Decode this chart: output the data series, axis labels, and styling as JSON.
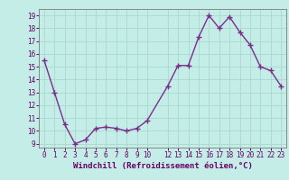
{
  "x": [
    0,
    1,
    2,
    3,
    4,
    5,
    6,
    7,
    8,
    9,
    10,
    12,
    13,
    14,
    15,
    16,
    17,
    18,
    19,
    20,
    21,
    22,
    23
  ],
  "y": [
    15.5,
    13.0,
    10.5,
    9.0,
    9.3,
    10.2,
    10.3,
    10.2,
    10.0,
    10.2,
    10.8,
    13.5,
    15.1,
    15.1,
    17.3,
    19.0,
    18.0,
    18.9,
    17.7,
    16.7,
    15.0,
    14.7,
    13.5
  ],
  "line_color": "#7B2D8B",
  "marker": "+",
  "marker_size": 4,
  "marker_linewidth": 1.0,
  "background_color": "#C5EDE8",
  "grid_color": "#A8D8CE",
  "xlabel": "Windchill (Refroidissement éolien,°C)",
  "xlabel_fontsize": 6.5,
  "ylabel_ticks": [
    9,
    10,
    11,
    12,
    13,
    14,
    15,
    16,
    17,
    18,
    19
  ],
  "xlim": [
    -0.5,
    23.5
  ],
  "ylim": [
    8.7,
    19.5
  ],
  "xticks": [
    0,
    1,
    2,
    3,
    4,
    5,
    6,
    7,
    8,
    9,
    10,
    12,
    13,
    14,
    15,
    16,
    17,
    18,
    19,
    20,
    21,
    22,
    23
  ],
  "tick_fontsize": 5.5,
  "line_width": 1.0
}
